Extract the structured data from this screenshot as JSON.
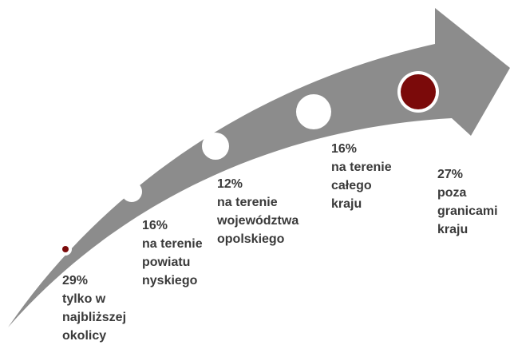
{
  "nodes": [
    {
      "value": "29%",
      "label": [
        "tylko w",
        "najbliższej",
        "okolicy"
      ]
    },
    {
      "value": "16%",
      "label": [
        "na terenie",
        "powiatu",
        "nyskiego"
      ]
    },
    {
      "value": "12%",
      "label": [
        "na terenie",
        "województwa",
        "opolskiego"
      ]
    },
    {
      "value": "16%",
      "label": [
        "na terenie",
        "całego",
        "kraju"
      ]
    },
    {
      "value": "27%",
      "label": [
        "poza",
        "granicami",
        "kraju"
      ]
    }
  ]
}
